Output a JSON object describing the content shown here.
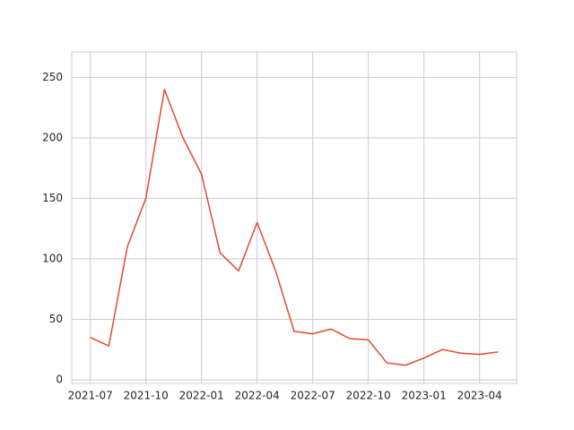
{
  "chart_data": {
    "type": "line",
    "x": [
      "2021-07",
      "2021-08",
      "2021-09",
      "2021-10",
      "2021-11",
      "2021-12",
      "2022-01",
      "2022-02",
      "2022-03",
      "2022-04",
      "2022-05",
      "2022-06",
      "2022-07",
      "2022-08",
      "2022-09",
      "2022-10",
      "2022-11",
      "2022-12",
      "2023-01",
      "2023-02",
      "2023-03",
      "2023-04",
      "2023-05"
    ],
    "series": [
      {
        "color": "#e24a33",
        "values": [
          35,
          28,
          110,
          150,
          240,
          200,
          170,
          105,
          90,
          130,
          90,
          40,
          38,
          42,
          34,
          33,
          14,
          12,
          18,
          25,
          22,
          21,
          23
        ]
      }
    ],
    "xlim": [
      "2021-06",
      "2023-06"
    ],
    "xticks": [
      "2021-07",
      "2021-10",
      "2022-01",
      "2022-04",
      "2022-07",
      "2022-10",
      "2023-01",
      "2023-04"
    ],
    "ylim": [
      -3,
      271
    ],
    "yticks": [
      0,
      50,
      100,
      150,
      200,
      250
    ],
    "grid": true
  }
}
